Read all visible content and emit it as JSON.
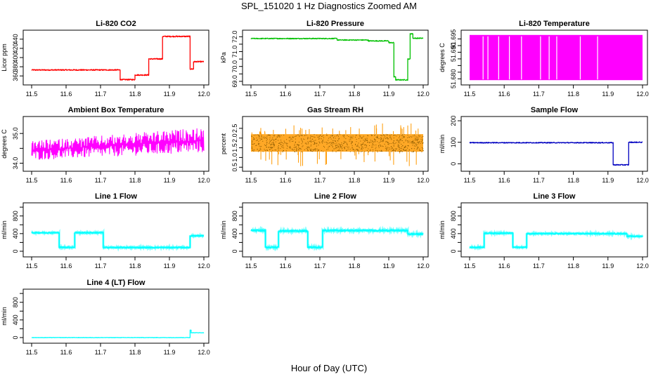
{
  "figure": {
    "title": "SPL_151020  1 Hz Diagnostics Zoomed AM",
    "xlabel": "Hour of Day (UTC)"
  },
  "chart_data": [
    {
      "type": "line",
      "title": "Li-820 CO2",
      "ylabel": "Licor ppm",
      "color": "#ff0000",
      "xlim": [
        11.5,
        12.0
      ],
      "ylim": [
        345,
        455
      ],
      "xticks": [
        11.5,
        11.6,
        11.7,
        11.8,
        11.9,
        12.0
      ],
      "yticks": [
        360,
        380,
        400,
        420,
        440
      ],
      "noise": 1.2,
      "segments": [
        [
          11.5,
          11.757,
          373
        ],
        [
          11.757,
          11.8,
          352
        ],
        [
          11.8,
          11.84,
          362
        ],
        [
          11.84,
          11.88,
          397
        ],
        [
          11.88,
          11.96,
          446
        ],
        [
          11.96,
          11.97,
          375
        ],
        [
          11.97,
          12.0,
          391
        ]
      ]
    },
    {
      "type": "line",
      "title": "Li-820 Pressure",
      "ylabel": "kPa",
      "color": "#00c000",
      "xlim": [
        11.5,
        12.0
      ],
      "ylim": [
        68.9,
        72.3
      ],
      "xticks": [
        11.5,
        11.6,
        11.7,
        11.8,
        11.9,
        12.0
      ],
      "yticks": [
        69.0,
        69.5,
        70.0,
        70.5,
        71.0,
        71.5,
        72.0
      ],
      "ytick_labels": [
        "69.0",
        "",
        "70.0",
        "",
        "71.0",
        "",
        "72.0"
      ],
      "noise": 0.03,
      "segments": [
        [
          11.5,
          11.75,
          71.88
        ],
        [
          11.75,
          11.84,
          71.78
        ],
        [
          11.84,
          11.9,
          71.72
        ],
        [
          11.9,
          11.915,
          71.6
        ],
        [
          11.915,
          11.92,
          69.3
        ],
        [
          11.92,
          11.955,
          69.1
        ],
        [
          11.955,
          11.962,
          70.5
        ],
        [
          11.962,
          11.97,
          72.2
        ],
        [
          11.97,
          12.0,
          71.9
        ]
      ]
    },
    {
      "type": "line",
      "title": "Li-820 Temperature",
      "ylabel": "degrees C",
      "color": "#ff00ff",
      "xlim": [
        11.5,
        12.0
      ],
      "ylim": [
        51.6785,
        51.6975
      ],
      "xticks": [
        11.5,
        11.6,
        11.7,
        11.8,
        11.9,
        12.0
      ],
      "yticks": [
        51.68,
        51.6825,
        51.685,
        51.6875,
        51.69,
        51.6925,
        51.695
      ],
      "ytick_labels": [
        "51.680",
        "",
        "",
        "",
        "51.690",
        "",
        "51.695"
      ],
      "band": [
        51.6795,
        51.6965
      ],
      "gaps": [
        11.539,
        11.553,
        11.584,
        11.615,
        11.65,
        11.705,
        11.73,
        11.752,
        11.82,
        11.87
      ]
    },
    {
      "type": "line",
      "title": "Ambient Box Temperature",
      "ylabel": "degrees C",
      "color": "#ff00ff",
      "xlim": [
        11.5,
        12.0
      ],
      "ylim": [
        33.8,
        35.5
      ],
      "xticks": [
        11.5,
        11.6,
        11.7,
        11.8,
        11.9,
        12.0
      ],
      "yticks": [
        34.0,
        34.5,
        35.0
      ],
      "ytick_labels": [
        "34.0",
        "",
        "35.0"
      ],
      "wiggle": {
        "start_lo": 34.1,
        "start_hi": 34.75,
        "end_lo": 34.35,
        "end_hi": 35.2
      }
    },
    {
      "type": "line",
      "title": "Gas Stream RH",
      "ylabel": "percent",
      "color": "#ff9900",
      "xlim": [
        11.5,
        12.0
      ],
      "ylim": [
        0.4,
        3.0
      ],
      "xticks": [
        11.5,
        11.6,
        11.7,
        11.8,
        11.9,
        12.0
      ],
      "yticks": [
        0.5,
        1.0,
        1.5,
        2.0,
        2.5
      ],
      "ytick_labels": [
        "0.5",
        "1.0",
        "1.5",
        "2.0",
        "2.5"
      ],
      "band": [
        1.3,
        2.2
      ],
      "dotted": true
    },
    {
      "type": "line",
      "title": "Sample Flow",
      "ylabel": "ml/min",
      "color": "#0000c0",
      "xlim": [
        11.5,
        12.0
      ],
      "ylim": [
        -25,
        210
      ],
      "xticks": [
        11.5,
        11.6,
        11.7,
        11.8,
        11.9,
        12.0
      ],
      "yticks": [
        0,
        100,
        200
      ],
      "noise": 2,
      "segments": [
        [
          11.5,
          11.915,
          98
        ],
        [
          11.915,
          11.96,
          -5
        ],
        [
          11.96,
          12.0,
          100
        ]
      ]
    },
    {
      "type": "line",
      "title": "Line 1 Flow",
      "ylabel": "ml/min",
      "color": "#00ffff",
      "xlim": [
        11.5,
        12.0
      ],
      "ylim": [
        -80,
        1050
      ],
      "xticks": [
        11.5,
        11.6,
        11.7,
        11.8,
        11.9,
        12.0
      ],
      "yticks": [
        0,
        200,
        400,
        600,
        800,
        1000
      ],
      "ytick_labels": [
        "0",
        "",
        "400",
        "",
        "800",
        ""
      ],
      "noise": 12,
      "segments": [
        [
          11.5,
          11.58,
          420
        ],
        [
          11.58,
          11.625,
          90
        ],
        [
          11.625,
          11.708,
          420
        ],
        [
          11.708,
          11.96,
          85
        ],
        [
          11.96,
          12.0,
          350
        ]
      ]
    },
    {
      "type": "line",
      "title": "Line 2 Flow",
      "ylabel": "ml/min",
      "color": "#00ffff",
      "xlim": [
        11.5,
        12.0
      ],
      "ylim": [
        -80,
        1050
      ],
      "xticks": [
        11.5,
        11.6,
        11.7,
        11.8,
        11.9,
        12.0
      ],
      "yticks": [
        0,
        200,
        400,
        600,
        800,
        1000
      ],
      "ytick_labels": [
        "0",
        "",
        "400",
        "",
        "800",
        ""
      ],
      "noise": 18,
      "segments": [
        [
          11.5,
          11.542,
          470
        ],
        [
          11.542,
          11.58,
          90
        ],
        [
          11.58,
          11.665,
          460
        ],
        [
          11.665,
          11.708,
          90
        ],
        [
          11.708,
          11.955,
          470
        ],
        [
          11.955,
          12.0,
          390
        ]
      ]
    },
    {
      "type": "line",
      "title": "Line 3 Flow",
      "ylabel": "ml/min",
      "color": "#00ffff",
      "xlim": [
        11.5,
        12.0
      ],
      "ylim": [
        -80,
        1050
      ],
      "xticks": [
        11.5,
        11.6,
        11.7,
        11.8,
        11.9,
        12.0
      ],
      "yticks": [
        0,
        200,
        400,
        600,
        800,
        1000
      ],
      "ytick_labels": [
        "0",
        "",
        "400",
        "",
        "800",
        ""
      ],
      "noise": 12,
      "segments": [
        [
          11.5,
          11.542,
          90
        ],
        [
          11.542,
          11.625,
          410
        ],
        [
          11.625,
          11.665,
          90
        ],
        [
          11.665,
          11.955,
          400
        ],
        [
          11.955,
          12.0,
          340
        ]
      ]
    },
    {
      "type": "line",
      "title": "Line 4 (LT) Flow",
      "ylabel": "ml/min",
      "color": "#00ffff",
      "xlim": [
        11.5,
        12.0
      ],
      "ylim": [
        -80,
        1050
      ],
      "xticks": [
        11.5,
        11.6,
        11.7,
        11.8,
        11.9,
        12.0
      ],
      "yticks": [
        0,
        200,
        400,
        600,
        800,
        1000
      ],
      "ytick_labels": [
        "0",
        "",
        "400",
        "",
        "800",
        ""
      ],
      "noise": 4,
      "segments": [
        [
          11.5,
          11.96,
          0
        ],
        [
          11.96,
          11.963,
          170
        ],
        [
          11.963,
          12.0,
          110
        ]
      ]
    }
  ]
}
